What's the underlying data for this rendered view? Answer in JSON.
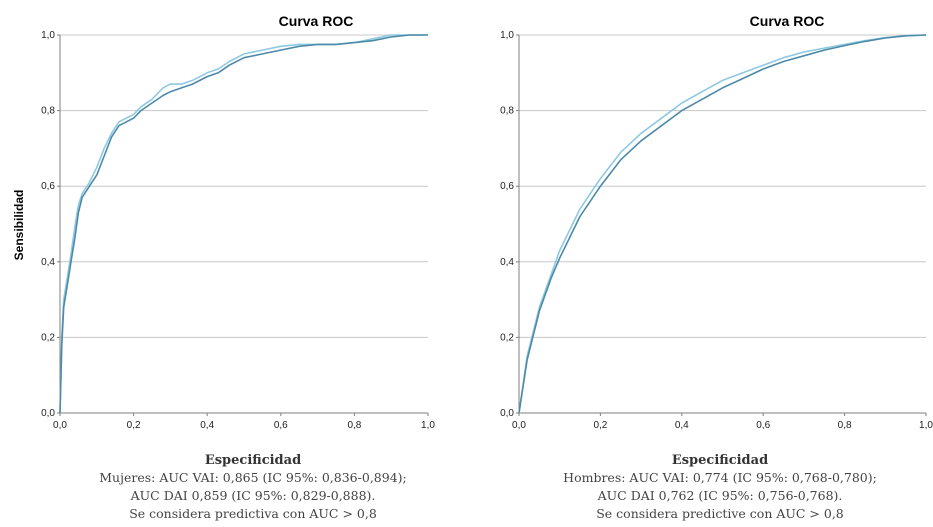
{
  "chart_data": [
    {
      "type": "line",
      "title": "Curva ROC",
      "xlabel": "Especificidad",
      "ylabel": "Sensibilidad",
      "xlim": [
        0,
        1
      ],
      "ylim": [
        0,
        1
      ],
      "x_ticks": [
        "0,0",
        "0,2",
        "0,4",
        "0,6",
        "0,8",
        "1,0"
      ],
      "y_ticks": [
        "0,0",
        "0,2",
        "0,4",
        "0,6",
        "0,8",
        "1,0"
      ],
      "grid": "horizontal",
      "caption": [
        "Mujeres: AUC VAI: 0,865 (IC 95%: 0,836-0,894);",
        "AUC DAI 0,859 (IC 95%: 0,829-0,888).",
        "Se considera predictiva con AUC > 0,8"
      ],
      "series": [
        {
          "color": "#8ec9e3",
          "x": [
            0,
            0.005,
            0.01,
            0.02,
            0.03,
            0.04,
            0.05,
            0.06,
            0.08,
            0.1,
            0.12,
            0.14,
            0.16,
            0.18,
            0.2,
            0.22,
            0.25,
            0.28,
            0.3,
            0.33,
            0.36,
            0.4,
            0.43,
            0.46,
            0.5,
            0.55,
            0.6,
            0.65,
            0.7,
            0.75,
            0.8,
            0.85,
            0.9,
            0.95,
            1.0
          ],
          "y": [
            0,
            0.2,
            0.3,
            0.36,
            0.42,
            0.49,
            0.55,
            0.58,
            0.61,
            0.65,
            0.7,
            0.74,
            0.77,
            0.78,
            0.79,
            0.81,
            0.83,
            0.86,
            0.87,
            0.87,
            0.88,
            0.9,
            0.91,
            0.93,
            0.95,
            0.96,
            0.97,
            0.975,
            0.975,
            0.975,
            0.98,
            0.99,
            1.0,
            1.0,
            1.0
          ]
        },
        {
          "color": "#4d8aa8",
          "x": [
            0,
            0.005,
            0.01,
            0.02,
            0.03,
            0.04,
            0.05,
            0.06,
            0.08,
            0.1,
            0.12,
            0.14,
            0.16,
            0.18,
            0.2,
            0.22,
            0.25,
            0.28,
            0.3,
            0.33,
            0.36,
            0.4,
            0.43,
            0.46,
            0.5,
            0.55,
            0.6,
            0.65,
            0.7,
            0.75,
            0.8,
            0.85,
            0.9,
            0.95,
            1.0
          ],
          "y": [
            0,
            0.18,
            0.28,
            0.34,
            0.4,
            0.46,
            0.53,
            0.57,
            0.6,
            0.63,
            0.68,
            0.73,
            0.76,
            0.77,
            0.78,
            0.8,
            0.82,
            0.84,
            0.85,
            0.86,
            0.87,
            0.89,
            0.9,
            0.92,
            0.94,
            0.95,
            0.96,
            0.97,
            0.975,
            0.975,
            0.98,
            0.985,
            0.995,
            1.0,
            1.0
          ]
        }
      ]
    },
    {
      "type": "line",
      "title": "Curva ROC",
      "xlabel": "Especificidad",
      "ylabel": "",
      "xlim": [
        0,
        1
      ],
      "ylim": [
        0,
        1
      ],
      "x_ticks": [
        "0,0",
        "0,2",
        "0,4",
        "0,6",
        "0,8",
        "1,0"
      ],
      "y_ticks": [
        "0,0",
        "0,2",
        "0,4",
        "0,6",
        "0,8",
        "1,0"
      ],
      "grid": "horizontal",
      "caption": [
        "Hombres: AUC VAI: 0,774 (IC 95%: 0,768-0,780);",
        "AUC DAI 0,762 (IC 95%: 0,756-0,768).",
        "Se considera predictive con AUC > 0,8"
      ],
      "series": [
        {
          "color": "#8ec9e3",
          "x": [
            0,
            0.02,
            0.05,
            0.08,
            0.1,
            0.15,
            0.2,
            0.25,
            0.3,
            0.35,
            0.4,
            0.45,
            0.5,
            0.55,
            0.6,
            0.65,
            0.7,
            0.75,
            0.8,
            0.85,
            0.9,
            0.95,
            1.0
          ],
          "y": [
            0,
            0.15,
            0.28,
            0.37,
            0.43,
            0.54,
            0.62,
            0.69,
            0.74,
            0.78,
            0.82,
            0.85,
            0.88,
            0.9,
            0.92,
            0.94,
            0.955,
            0.965,
            0.975,
            0.985,
            0.993,
            0.998,
            1.0
          ]
        },
        {
          "color": "#4d8aa8",
          "x": [
            0,
            0.02,
            0.05,
            0.08,
            0.1,
            0.15,
            0.2,
            0.25,
            0.3,
            0.35,
            0.4,
            0.45,
            0.5,
            0.55,
            0.6,
            0.65,
            0.7,
            0.75,
            0.8,
            0.85,
            0.9,
            0.95,
            1.0
          ],
          "y": [
            0,
            0.14,
            0.27,
            0.36,
            0.41,
            0.52,
            0.6,
            0.67,
            0.72,
            0.76,
            0.8,
            0.83,
            0.86,
            0.885,
            0.91,
            0.93,
            0.945,
            0.96,
            0.972,
            0.983,
            0.992,
            0.998,
            1.0
          ]
        }
      ]
    }
  ]
}
